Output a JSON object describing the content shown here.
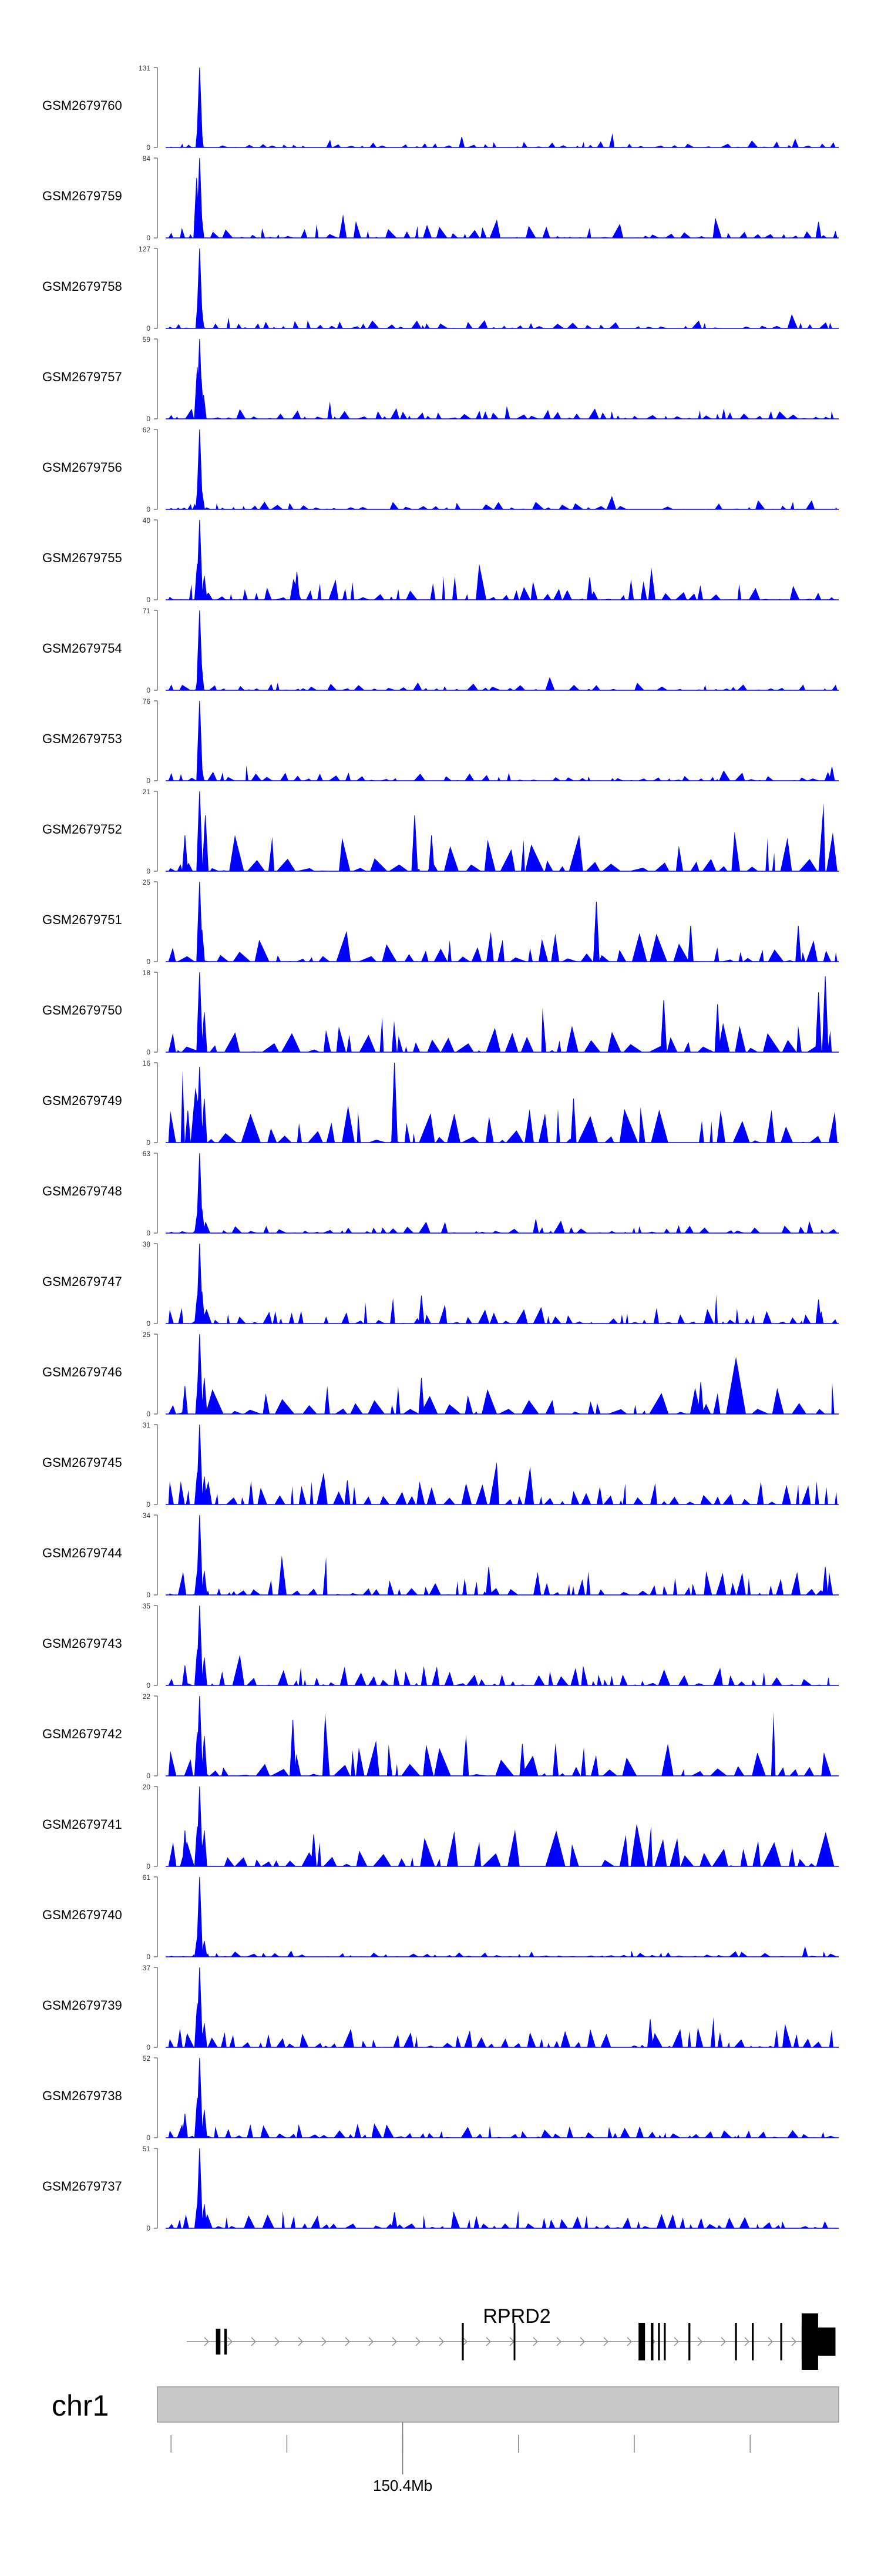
{
  "chart_data": {
    "type": "area",
    "title": "",
    "xlabel": "",
    "ylabel": "",
    "track_color": "#0000ff",
    "tracks": [
      {
        "name": "GSM2679760",
        "ymax": "131",
        "ymin": "0",
        "seed": 11,
        "bg": 0.1,
        "spikes": [
          [
            0.0504,
            1.0
          ],
          [
            0.0487,
            0.36
          ],
          [
            0.0522,
            0.28
          ],
          [
            0.44,
            0.13
          ]
        ]
      },
      {
        "name": "GSM2679759",
        "ymax": "84",
        "ymin": "0",
        "seed": 23,
        "bg": 0.18,
        "spikes": [
          [
            0.0504,
            1.0
          ],
          [
            0.0461,
            0.75
          ],
          [
            0.0487,
            0.45
          ],
          [
            0.053,
            0.3
          ],
          [
            0.97,
            0.2
          ]
        ]
      },
      {
        "name": "GSM2679758",
        "ymax": "127",
        "ymin": "0",
        "seed": 37,
        "bg": 0.1,
        "spikes": [
          [
            0.0504,
            1.0
          ],
          [
            0.0487,
            0.45
          ],
          [
            0.053,
            0.3
          ]
        ]
      },
      {
        "name": "GSM2679757",
        "ymax": "59",
        "ymin": "0",
        "seed": 41,
        "bg": 0.14,
        "spikes": [
          [
            0.0504,
            1.0
          ],
          [
            0.047,
            0.65
          ],
          [
            0.053,
            0.5
          ],
          [
            0.0565,
            0.3
          ]
        ]
      },
      {
        "name": "GSM2679756",
        "ymax": "62",
        "ymin": "0",
        "seed": 53,
        "bg": 0.1,
        "spikes": [
          [
            0.0504,
            1.0
          ],
          [
            0.0487,
            0.4
          ],
          [
            0.054,
            0.22
          ]
        ]
      },
      {
        "name": "GSM2679755",
        "ymax": "40",
        "ymin": "0",
        "seed": 67,
        "bg": 0.3,
        "spikes": [
          [
            0.0504,
            1.0
          ],
          [
            0.047,
            0.45
          ],
          [
            0.0574,
            0.3
          ],
          [
            0.195,
            0.35
          ],
          [
            0.63,
            0.28
          ]
        ]
      },
      {
        "name": "GSM2679754",
        "ymax": "71",
        "ymin": "0",
        "seed": 71,
        "bg": 0.1,
        "spikes": [
          [
            0.0504,
            1.0
          ],
          [
            0.053,
            0.35
          ],
          [
            0.0487,
            0.2
          ]
        ]
      },
      {
        "name": "GSM2679753",
        "ymax": "76",
        "ymin": "0",
        "seed": 83,
        "bg": 0.12,
        "spikes": [
          [
            0.0504,
            1.0
          ],
          [
            0.053,
            0.2
          ],
          [
            0.99,
            0.17
          ]
        ]
      },
      {
        "name": "GSM2679752",
        "ymax": "21",
        "ymin": "0",
        "seed": 97,
        "bg": 0.5,
        "spikes": [
          [
            0.0504,
            1.0
          ],
          [
            0.059,
            0.7
          ],
          [
            0.0287,
            0.45
          ],
          [
            0.37,
            0.7
          ],
          [
            0.395,
            0.45
          ]
        ]
      },
      {
        "name": "GSM2679751",
        "ymax": "25",
        "ymin": "0",
        "seed": 101,
        "bg": 0.4,
        "spikes": [
          [
            0.0504,
            1.0
          ],
          [
            0.054,
            0.4
          ],
          [
            0.64,
            0.75
          ],
          [
            0.78,
            0.45
          ],
          [
            0.94,
            0.45
          ]
        ]
      },
      {
        "name": "GSM2679750",
        "ymax": "18",
        "ymin": "0",
        "seed": 113,
        "bg": 0.45,
        "spikes": [
          [
            0.0504,
            1.0
          ],
          [
            0.0574,
            0.5
          ],
          [
            0.74,
            0.65
          ],
          [
            0.82,
            0.6
          ],
          [
            0.98,
            0.95
          ],
          [
            0.97,
            0.75
          ]
        ]
      },
      {
        "name": "GSM2679749",
        "ymax": "16",
        "ymin": "0",
        "seed": 127,
        "bg": 0.5,
        "spikes": [
          [
            0.0504,
            0.95
          ],
          [
            0.0574,
            0.55
          ],
          [
            0.34,
            1.0
          ],
          [
            0.606,
            0.55
          ],
          [
            0.033,
            0.4
          ]
        ]
      },
      {
        "name": "GSM2679748",
        "ymax": "63",
        "ymin": "0",
        "seed": 131,
        "bg": 0.1,
        "spikes": [
          [
            0.0504,
            1.0
          ],
          [
            0.054,
            0.3
          ],
          [
            0.047,
            0.25
          ],
          [
            0.55,
            0.17
          ]
        ]
      },
      {
        "name": "GSM2679747",
        "ymax": "38",
        "ymin": "0",
        "seed": 139,
        "bg": 0.2,
        "spikes": [
          [
            0.0504,
            1.0
          ],
          [
            0.054,
            0.4
          ],
          [
            0.047,
            0.35
          ],
          [
            0.38,
            0.35
          ],
          [
            0.97,
            0.3
          ]
        ]
      },
      {
        "name": "GSM2679746",
        "ymax": "25",
        "ymin": "0",
        "seed": 149,
        "bg": 0.4,
        "spikes": [
          [
            0.0504,
            1.0
          ],
          [
            0.0574,
            0.45
          ],
          [
            0.0287,
            0.35
          ],
          [
            0.38,
            0.45
          ],
          [
            0.795,
            0.4
          ]
        ]
      },
      {
        "name": "GSM2679745",
        "ymax": "31",
        "ymin": "0",
        "seed": 151,
        "bg": 0.3,
        "spikes": [
          [
            0.0504,
            1.0
          ],
          [
            0.047,
            0.4
          ],
          [
            0.0574,
            0.35
          ],
          [
            0.27,
            0.3
          ]
        ]
      },
      {
        "name": "GSM2679744",
        "ymax": "34",
        "ymin": "0",
        "seed": 163,
        "bg": 0.3,
        "spikes": [
          [
            0.0504,
            1.0
          ],
          [
            0.047,
            0.3
          ],
          [
            0.0574,
            0.3
          ],
          [
            0.48,
            0.35
          ],
          [
            0.98,
            0.35
          ]
        ]
      },
      {
        "name": "GSM2679743",
        "ymax": "35",
        "ymin": "0",
        "seed": 173,
        "bg": 0.25,
        "spikes": [
          [
            0.0504,
            1.0
          ],
          [
            0.047,
            0.45
          ],
          [
            0.0574,
            0.35
          ],
          [
            0.0287,
            0.25
          ]
        ]
      },
      {
        "name": "GSM2679742",
        "ymax": "22",
        "ymin": "0",
        "seed": 181,
        "bg": 0.45,
        "spikes": [
          [
            0.0504,
            1.0
          ],
          [
            0.047,
            0.55
          ],
          [
            0.0574,
            0.5
          ],
          [
            0.189,
            0.7
          ],
          [
            0.53,
            0.4
          ]
        ]
      },
      {
        "name": "GSM2679741",
        "ymax": "20",
        "ymin": "0",
        "seed": 191,
        "bg": 0.5,
        "spikes": [
          [
            0.0504,
            1.0
          ],
          [
            0.047,
            0.5
          ],
          [
            0.0574,
            0.45
          ],
          [
            0.0287,
            0.45
          ],
          [
            0.22,
            0.4
          ]
        ]
      },
      {
        "name": "GSM2679740",
        "ymax": "61",
        "ymin": "0",
        "seed": 197,
        "bg": 0.08,
        "spikes": [
          [
            0.0504,
            1.0
          ],
          [
            0.047,
            0.25
          ],
          [
            0.0574,
            0.2
          ],
          [
            0.95,
            0.12
          ]
        ]
      },
      {
        "name": "GSM2679739",
        "ymax": "37",
        "ymin": "0",
        "seed": 211,
        "bg": 0.25,
        "spikes": [
          [
            0.0504,
            1.0
          ],
          [
            0.047,
            0.55
          ],
          [
            0.0574,
            0.3
          ],
          [
            0.72,
            0.35
          ]
        ]
      },
      {
        "name": "GSM2679738",
        "ymax": "52",
        "ymin": "0",
        "seed": 223,
        "bg": 0.18,
        "spikes": [
          [
            0.0504,
            1.0
          ],
          [
            0.047,
            0.5
          ],
          [
            0.0574,
            0.35
          ],
          [
            0.0287,
            0.3
          ]
        ]
      },
      {
        "name": "GSM2679737",
        "ymax": "51",
        "ymin": "0",
        "seed": 227,
        "bg": 0.18,
        "spikes": [
          [
            0.0504,
            1.0
          ],
          [
            0.047,
            0.3
          ],
          [
            0.0574,
            0.3
          ],
          [
            0.34,
            0.2
          ]
        ]
      }
    ],
    "gene": {
      "name": "RPRD2",
      "strand": "+",
      "exons": [
        [
          0.045,
          0.052,
          "utr"
        ],
        [
          0.058,
          0.062,
          "utr"
        ],
        [
          0.425,
          0.428,
          "cds"
        ],
        [
          0.505,
          0.507,
          "cds"
        ],
        [
          0.698,
          0.708,
          "cds"
        ],
        [
          0.717,
          0.721,
          "cds"
        ],
        [
          0.728,
          0.731,
          "cds"
        ],
        [
          0.737,
          0.74,
          "cds"
        ],
        [
          0.775,
          0.778,
          "cds"
        ],
        [
          0.847,
          0.85,
          "cds"
        ],
        [
          0.873,
          0.876,
          "cds"
        ],
        [
          0.917,
          0.92,
          "cds"
        ],
        [
          0.95,
          0.968,
          "cds"
        ],
        [
          0.968,
          1.0,
          "utr"
        ]
      ]
    },
    "ideogram": {
      "chromosome": "chr1",
      "ticks": [
        0.02,
        0.19,
        0.36,
        0.53,
        0.7,
        0.87
      ],
      "label_tick": 0.36,
      "label": "150.4Mb"
    }
  }
}
